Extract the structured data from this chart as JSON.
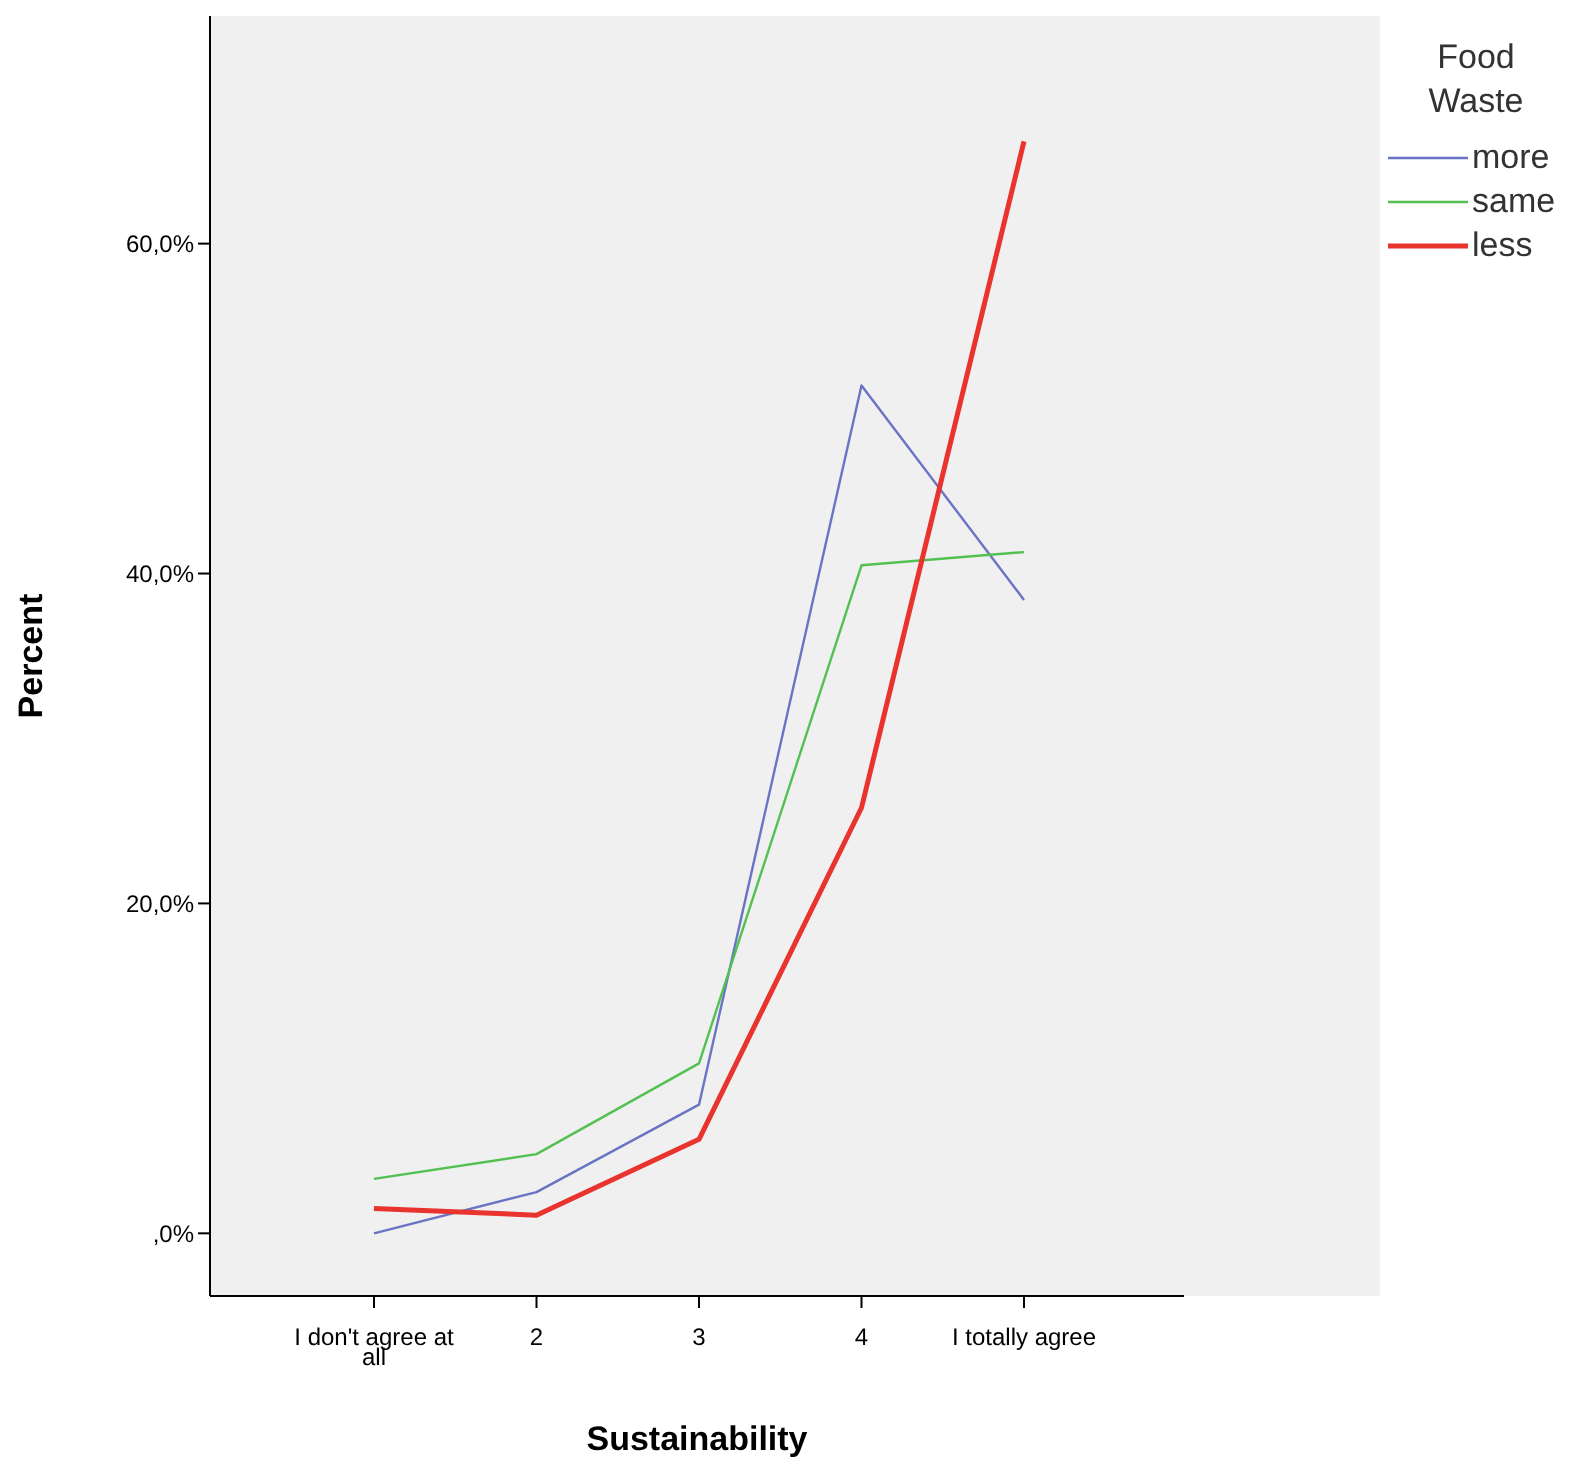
{
  "chart_data": {
    "type": "line",
    "xlabel": "Sustainability",
    "ylabel": "Percent",
    "legend_title": "Food Waste",
    "legend": "top right",
    "categories": [
      "I don't agree at all",
      "2",
      "3",
      "4",
      "I totally agree"
    ],
    "ylim": [
      -3.8,
      73.8
    ],
    "yticks": [
      {
        "value": 0,
        "label": ",0%"
      },
      {
        "value": 20,
        "label": "20,0%"
      },
      {
        "value": 40,
        "label": "40,0%"
      },
      {
        "value": 60,
        "label": "60,0%"
      }
    ],
    "grid": false,
    "marker": "none",
    "series": [
      {
        "name": "more",
        "color": "#6a74c4",
        "values": [
          0,
          2.5,
          7.8,
          51.4,
          38.4
        ]
      },
      {
        "name": "same",
        "color": "#52c152",
        "values": [
          3.3,
          4.8,
          10.3,
          40.5,
          41.3
        ]
      },
      {
        "name": "less",
        "color": "#e8332e",
        "values": [
          1.5,
          1.1,
          5.7,
          25.8,
          66.2
        ]
      }
    ]
  }
}
